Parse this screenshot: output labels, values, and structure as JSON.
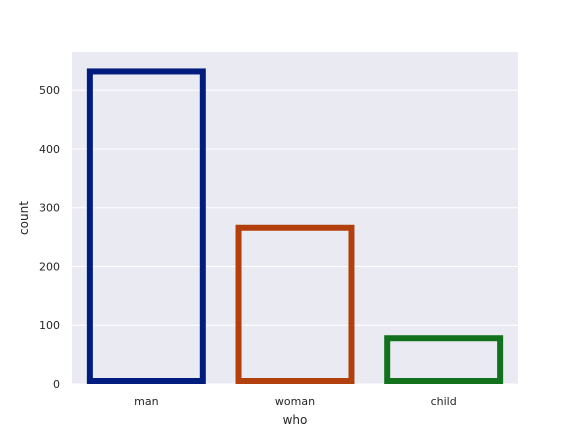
{
  "chart_data": {
    "type": "bar",
    "categories": [
      "man",
      "woman",
      "child"
    ],
    "values": [
      537,
      271,
      83
    ],
    "xlabel": "who",
    "ylabel": "count",
    "ylim": [
      0,
      565
    ],
    "yticks": [
      0,
      100,
      200,
      300,
      400,
      500
    ],
    "grid": true,
    "bar_fill": "none",
    "colors": [
      "#001c7f",
      "#b1400d",
      "#12711c"
    ],
    "background": "#eaeaf2",
    "gridline_color": "#ffffff"
  }
}
